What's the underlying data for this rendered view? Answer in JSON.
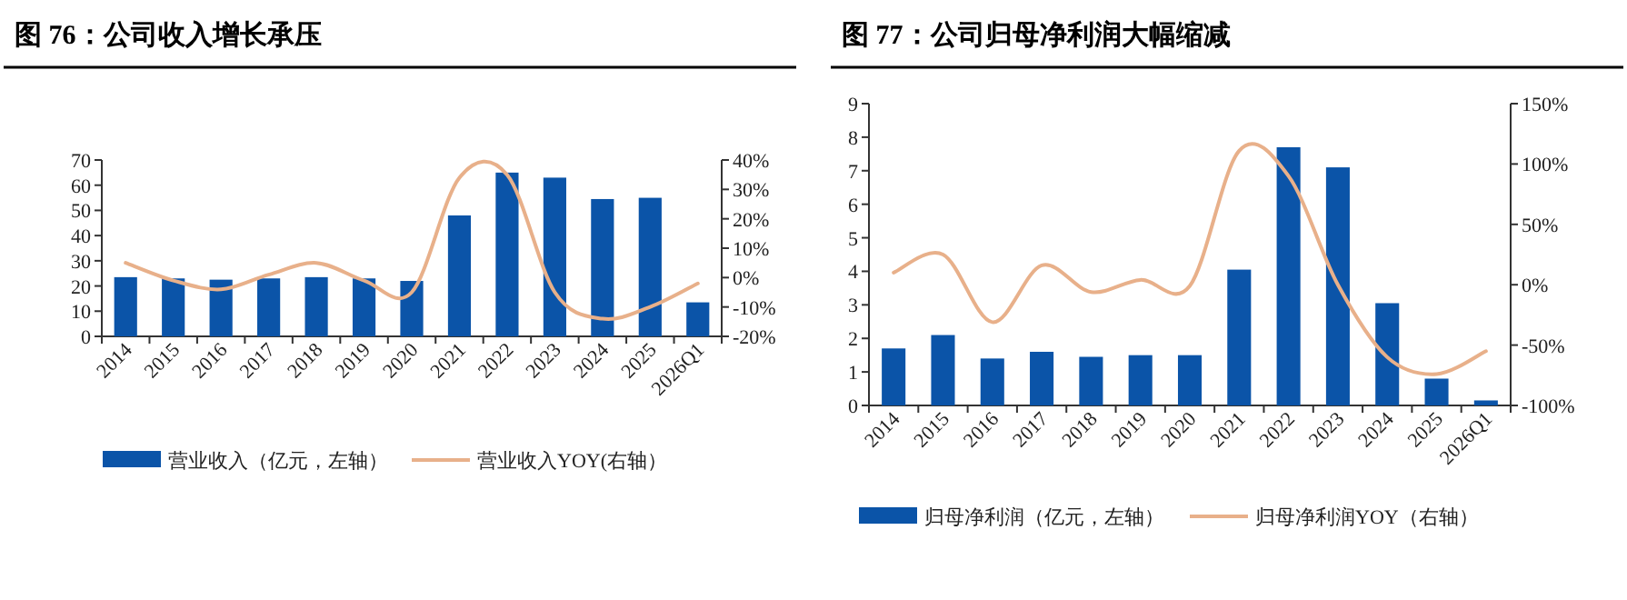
{
  "chart_data": [
    {
      "type": "bar",
      "title": "图 76：公司收入增长承压",
      "categories": [
        "2014",
        "2015",
        "2016",
        "2017",
        "2018",
        "2019",
        "2020",
        "2021",
        "2022",
        "2023",
        "2024",
        "2025",
        "2026Q1"
      ],
      "series": [
        {
          "name": "营业收入（亿元，左轴）",
          "color": "#0b54a8",
          "values": [
            23.5,
            23,
            22.5,
            23,
            23.5,
            23,
            22,
            48,
            65,
            63,
            54.5,
            55,
            13.5
          ]
        },
        {
          "name": "营业收入YOY(右轴）",
          "type": "line",
          "axis": "y2",
          "color": "#e8b08a",
          "values": [
            5,
            -1,
            -4,
            1,
            5,
            -1,
            -5,
            34,
            35,
            -5,
            -14,
            -10,
            -2
          ]
        }
      ],
      "ylim": [
        0,
        70
      ],
      "yticks": [
        0,
        10,
        20,
        30,
        40,
        50,
        60,
        70
      ],
      "y2lim": [
        -20,
        40
      ],
      "y2ticks": [
        {
          "value": -20,
          "label": "-20%"
        },
        {
          "value": -10,
          "label": "-10%"
        },
        {
          "value": 0,
          "label": "0%"
        },
        {
          "value": 10,
          "label": "10%"
        },
        {
          "value": 20,
          "label": "20%"
        },
        {
          "value": 30,
          "label": "30%"
        },
        {
          "value": 40,
          "label": "40%"
        }
      ],
      "legend": "bottom",
      "grid": false
    },
    {
      "type": "bar",
      "title": "图 77：公司归母净利润大幅缩减",
      "categories": [
        "2014",
        "2015",
        "2016",
        "2017",
        "2018",
        "2019",
        "2020",
        "2021",
        "2022",
        "2023",
        "2024",
        "2025",
        "2026Q1"
      ],
      "series": [
        {
          "name": "归母净利润（亿元，左轴）",
          "color": "#0b54a8",
          "values": [
            1.7,
            2.1,
            1.4,
            1.6,
            1.45,
            1.5,
            1.5,
            4.05,
            7.7,
            7.1,
            3.05,
            0.8,
            0.15
          ]
        },
        {
          "name": "归母净利润YOY（右轴）",
          "type": "line",
          "axis": "y2",
          "color": "#e8b08a",
          "values": [
            10,
            25,
            -31,
            16,
            -6,
            4,
            -1,
            111,
            90,
            0,
            -60,
            -74,
            -55
          ]
        }
      ],
      "ylim": [
        0,
        9
      ],
      "yticks": [
        0,
        1,
        2,
        3,
        4,
        5,
        6,
        7,
        8,
        9
      ],
      "y2lim": [
        -100,
        150
      ],
      "y2ticks": [
        {
          "value": -100,
          "label": "-100%"
        },
        {
          "value": -50,
          "label": "-50%"
        },
        {
          "value": 0,
          "label": "0%"
        },
        {
          "value": 50,
          "label": "50%"
        },
        {
          "value": 100,
          "label": "100%"
        },
        {
          "value": 150,
          "label": "150%"
        }
      ],
      "legend": "bottom",
      "grid": false
    }
  ]
}
